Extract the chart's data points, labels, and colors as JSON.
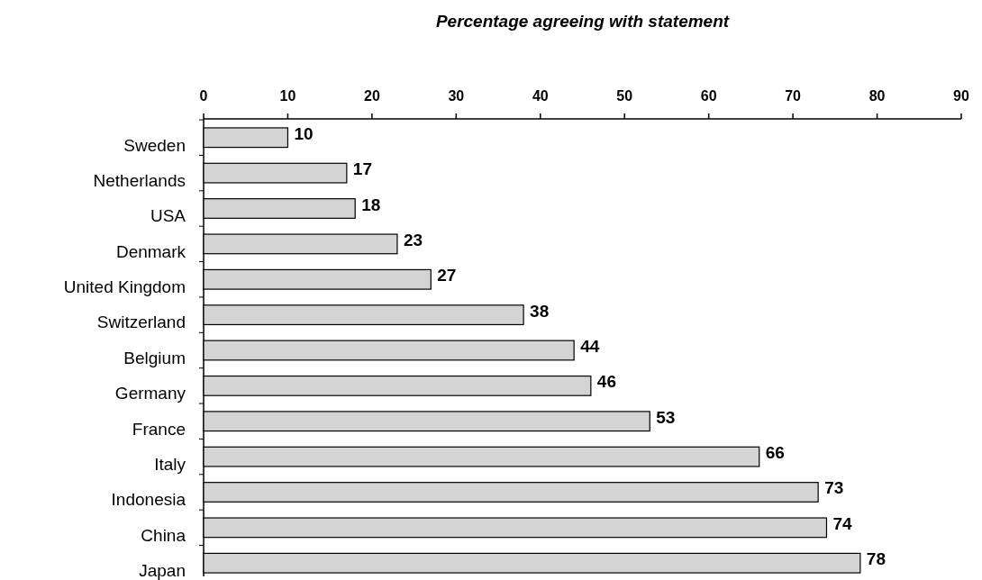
{
  "chart_data": {
    "type": "bar",
    "orientation": "horizontal",
    "xlabel": "Percentage agreeing with statement",
    "categories": [
      "Sweden",
      "Netherlands",
      "USA",
      "Denmark",
      "United Kingdom",
      "Switzerland",
      "Belgium",
      "Germany",
      "France",
      "Italy",
      "Indonesia",
      "China",
      "Japan"
    ],
    "values": [
      10,
      17,
      18,
      23,
      27,
      38,
      44,
      46,
      53,
      66,
      73,
      74,
      78
    ],
    "color": "#d4d4d4",
    "xlim": [
      0,
      90
    ],
    "xticks": [
      0,
      10,
      20,
      30,
      40,
      50,
      60,
      70,
      80,
      90
    ],
    "data_labels": true
  }
}
